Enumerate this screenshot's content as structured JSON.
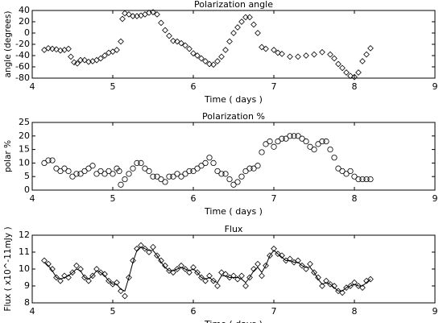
{
  "chart_data": [
    {
      "type": "scatter",
      "title": "Polarization angle",
      "xlabel": "Time ( days )",
      "ylabel": "angle (degrees)",
      "xlim": [
        4,
        9
      ],
      "xticks": [
        4,
        5,
        6,
        7,
        8,
        9
      ],
      "ylim": [
        -80,
        40
      ],
      "yticks": [
        -80,
        -60,
        -40,
        -20,
        0,
        20,
        40
      ],
      "x": [
        4.15,
        4.2,
        4.25,
        4.3,
        4.35,
        4.4,
        4.45,
        4.48,
        4.52,
        4.56,
        4.6,
        4.65,
        4.7,
        4.75,
        4.8,
        4.85,
        4.9,
        4.95,
        5.0,
        5.05,
        5.1,
        5.12,
        5.15,
        5.2,
        5.25,
        5.3,
        5.35,
        5.4,
        5.45,
        5.5,
        5.55,
        5.6,
        5.65,
        5.7,
        5.75,
        5.8,
        5.85,
        5.9,
        5.95,
        6.0,
        6.05,
        6.1,
        6.15,
        6.2,
        6.25,
        6.3,
        6.35,
        6.4,
        6.45,
        6.5,
        6.55,
        6.6,
        6.65,
        6.7,
        6.75,
        6.8,
        6.85,
        6.9,
        7.0,
        7.05,
        7.1,
        7.2,
        7.3,
        7.4,
        7.5,
        7.6,
        7.7,
        7.75,
        7.8,
        7.85,
        7.9,
        7.95,
        8.0,
        8.05,
        8.1,
        8.15,
        8.2
      ],
      "series": [
        {
          "color": "#000000",
          "marker": "diamond",
          "values": [
            -30,
            -27,
            -28,
            -29,
            -31,
            -30,
            -28,
            -42,
            -52,
            -54,
            -48,
            -48,
            -51,
            -50,
            -48,
            -45,
            -40,
            -35,
            -33,
            -30,
            -15,
            25,
            35,
            33,
            30,
            30,
            31,
            33,
            36,
            37,
            33,
            18,
            5,
            -5,
            -14,
            -15,
            -18,
            -22,
            -28,
            -36,
            -40,
            -45,
            -50,
            -55,
            -56,
            -50,
            -42,
            -30,
            -15,
            0,
            10,
            20,
            28,
            28,
            15,
            0,
            -25,
            -28,
            -30,
            -35,
            -37,
            -42,
            -42,
            -40,
            -38,
            -34,
            -38,
            -45,
            -55,
            -62,
            -70,
            -76,
            -78,
            -70,
            -50,
            -38,
            -27
          ]
        }
      ]
    },
    {
      "type": "scatter",
      "title": "Polarization %",
      "xlabel": "Time ( days )",
      "ylabel": "polar %",
      "xlim": [
        4,
        9
      ],
      "xticks": [
        4,
        5,
        6,
        7,
        8,
        9
      ],
      "ylim": [
        0,
        25
      ],
      "yticks": [
        0,
        5,
        10,
        15,
        20,
        25
      ],
      "x": [
        4.15,
        4.2,
        4.25,
        4.3,
        4.35,
        4.4,
        4.45,
        4.5,
        4.55,
        4.6,
        4.65,
        4.7,
        4.75,
        4.8,
        4.85,
        4.9,
        4.95,
        5.0,
        5.05,
        5.08,
        5.1,
        5.15,
        5.2,
        5.25,
        5.3,
        5.35,
        5.4,
        5.45,
        5.5,
        5.55,
        5.6,
        5.65,
        5.7,
        5.75,
        5.8,
        5.85,
        5.9,
        5.95,
        6.0,
        6.05,
        6.1,
        6.15,
        6.2,
        6.25,
        6.3,
        6.35,
        6.4,
        6.45,
        6.5,
        6.55,
        6.6,
        6.65,
        6.7,
        6.75,
        6.8,
        6.85,
        6.9,
        6.95,
        7.0,
        7.05,
        7.1,
        7.15,
        7.2,
        7.25,
        7.3,
        7.35,
        7.4,
        7.45,
        7.5,
        7.55,
        7.6,
        7.65,
        7.7,
        7.75,
        7.8,
        7.85,
        7.9,
        7.95,
        8.0,
        8.05,
        8.1,
        8.15,
        8.2
      ],
      "series": [
        {
          "color": "#000000",
          "marker": "circle",
          "values": [
            10,
            11,
            11,
            8,
            7,
            8,
            7,
            5,
            6,
            6,
            7,
            8,
            9,
            6,
            7,
            6,
            7,
            6,
            8,
            7,
            2,
            4,
            6,
            8,
            10,
            10,
            8,
            7,
            5,
            5,
            4,
            3,
            5,
            5,
            6,
            5,
            6,
            7,
            7,
            8,
            9,
            10,
            12,
            10,
            7,
            6,
            6,
            4,
            2,
            3,
            5,
            7,
            8,
            8,
            9,
            14,
            17,
            18,
            16,
            18,
            19,
            19,
            20,
            20,
            20,
            19,
            18,
            16,
            15,
            17,
            18,
            18,
            15,
            12,
            8,
            7,
            6,
            7,
            5,
            4,
            4,
            4,
            4
          ]
        }
      ]
    },
    {
      "type": "scatter",
      "title": "Flux",
      "xlabel": "Time ( days )",
      "ylabel": "Flux ( x10^-11mJy )",
      "xlim": [
        4,
        9
      ],
      "xticks": [
        4,
        5,
        6,
        7,
        8,
        9
      ],
      "ylim": [
        8,
        12
      ],
      "yticks": [
        8,
        9,
        10,
        11,
        12
      ],
      "x": [
        4.15,
        4.2,
        4.25,
        4.3,
        4.35,
        4.4,
        4.45,
        4.5,
        4.55,
        4.6,
        4.65,
        4.7,
        4.75,
        4.8,
        4.85,
        4.9,
        4.95,
        5.0,
        5.05,
        5.1,
        5.15,
        5.2,
        5.25,
        5.3,
        5.35,
        5.4,
        5.45,
        5.5,
        5.55,
        5.6,
        5.65,
        5.7,
        5.75,
        5.8,
        5.85,
        5.9,
        5.95,
        6.0,
        6.05,
        6.1,
        6.15,
        6.2,
        6.25,
        6.3,
        6.35,
        6.4,
        6.45,
        6.5,
        6.55,
        6.6,
        6.65,
        6.7,
        6.75,
        6.8,
        6.85,
        6.9,
        6.95,
        7.0,
        7.05,
        7.1,
        7.15,
        7.2,
        7.25,
        7.3,
        7.35,
        7.4,
        7.45,
        7.5,
        7.55,
        7.6,
        7.65,
        7.7,
        7.75,
        7.8,
        7.85,
        7.9,
        7.95,
        8.0,
        8.05,
        8.1,
        8.15,
        8.2
      ],
      "series": [
        {
          "color": "#000000",
          "marker": "diamond",
          "values": [
            10.5,
            10.3,
            10.0,
            9.5,
            9.3,
            9.6,
            9.5,
            9.8,
            10.2,
            10.0,
            9.5,
            9.3,
            9.6,
            10.0,
            9.8,
            9.7,
            9.3,
            9.1,
            9.2,
            8.7,
            8.4,
            9.5,
            10.5,
            11.2,
            11.4,
            11.2,
            11.0,
            11.3,
            10.8,
            10.5,
            10.2,
            9.9,
            9.8,
            10.0,
            10.2,
            10.0,
            9.8,
            10.1,
            9.8,
            9.5,
            9.3,
            9.6,
            9.3,
            9.0,
            9.8,
            9.7,
            9.5,
            9.6,
            9.4,
            9.6,
            9.0,
            9.5,
            10.0,
            10.3,
            9.6,
            10.2,
            10.8,
            11.2,
            10.9,
            10.8,
            10.5,
            10.6,
            10.4,
            10.5,
            10.2,
            10.0,
            10.3,
            9.8,
            9.5,
            9.0,
            9.3,
            9.1,
            9.0,
            8.7,
            8.6,
            8.9,
            9.0,
            9.2,
            9.0,
            8.9,
            9.3,
            9.4
          ]
        },
        {
          "color": "#000000",
          "style": "line",
          "values": [
            10.4,
            10.2,
            9.9,
            9.5,
            9.4,
            9.5,
            9.6,
            9.8,
            10.0,
            9.9,
            9.5,
            9.4,
            9.6,
            9.9,
            9.8,
            9.6,
            9.3,
            9.1,
            9.1,
            8.8,
            8.7,
            9.5,
            10.4,
            11.1,
            11.3,
            11.2,
            11.1,
            11.1,
            10.8,
            10.4,
            10.1,
            9.9,
            9.9,
            10.0,
            10.1,
            10.0,
            9.9,
            10.0,
            9.8,
            9.5,
            9.4,
            9.5,
            9.3,
            9.2,
            9.6,
            9.6,
            9.5,
            9.5,
            9.5,
            9.4,
            9.2,
            9.5,
            9.9,
            10.1,
            9.8,
            10.2,
            10.8,
            11.1,
            10.9,
            10.7,
            10.5,
            10.5,
            10.4,
            10.4,
            10.2,
            10.1,
            10.1,
            9.8,
            9.4,
            9.1,
            9.2,
            9.1,
            8.9,
            8.7,
            8.7,
            8.9,
            9.0,
            9.1,
            9.0,
            9.0,
            9.2,
            9.4
          ]
        }
      ]
    }
  ]
}
